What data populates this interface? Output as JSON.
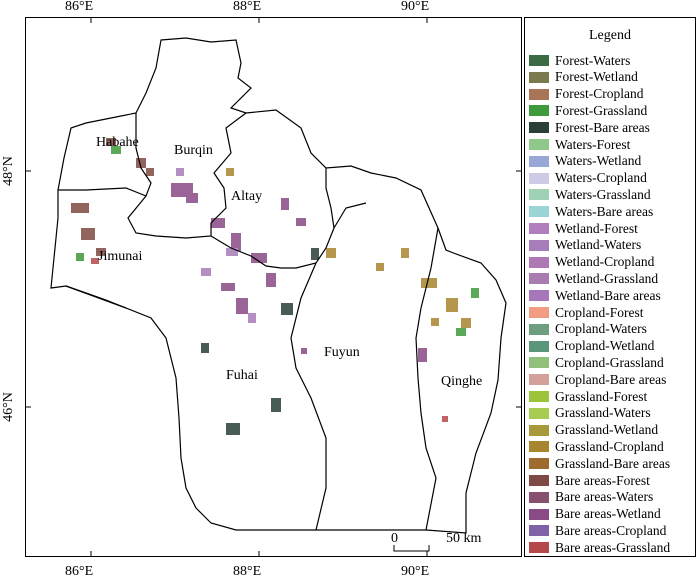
{
  "map": {
    "lon_ticks": [
      "86°E",
      "88°E",
      "90°E"
    ],
    "lat_ticks": [
      "48°N",
      "46°N"
    ],
    "regions": [
      "Habahe",
      "Burqin",
      "Altay",
      "Jimunai",
      "Fuhai",
      "Fuyun",
      "Qinghe"
    ],
    "scale_bar": {
      "start": "0",
      "end": "50 km"
    }
  },
  "legend": {
    "title": "Legend",
    "items": [
      {
        "label": "Forest-Waters",
        "color": "#3a6b45"
      },
      {
        "label": "Forest-Wetland",
        "color": "#7b7a4e"
      },
      {
        "label": "Forest-Cropland",
        "color": "#a87656"
      },
      {
        "label": "Forest-Grassland",
        "color": "#3f9a3c"
      },
      {
        "label": "Forest-Bare areas",
        "color": "#2a3f38"
      },
      {
        "label": "Waters-Forest",
        "color": "#8fc98a"
      },
      {
        "label": "Waters-Wetland",
        "color": "#97a8d6"
      },
      {
        "label": "Waters-Cropland",
        "color": "#cdcbe6"
      },
      {
        "label": "Waters-Grassland",
        "color": "#9fd1b4"
      },
      {
        "label": "Waters-Bare areas",
        "color": "#9bd5d8"
      },
      {
        "label": "Wetland-Forest",
        "color": "#b17fbd"
      },
      {
        "label": "Wetland-Waters",
        "color": "#a77cba"
      },
      {
        "label": "Wetland-Cropland",
        "color": "#ad78b4"
      },
      {
        "label": "Wetland-Grassland",
        "color": "#a97bb0"
      },
      {
        "label": "Wetland-Bare areas",
        "color": "#a677b8"
      },
      {
        "label": "Cropland-Forest",
        "color": "#f29c82"
      },
      {
        "label": "Cropland-Waters",
        "color": "#6e9e80"
      },
      {
        "label": "Cropland-Wetland",
        "color": "#5a9678"
      },
      {
        "label": "Cropland-Grassland",
        "color": "#91c07a"
      },
      {
        "label": "Cropland-Bare areas",
        "color": "#d4a09c"
      },
      {
        "label": "Grassland-Forest",
        "color": "#9bc43b"
      },
      {
        "label": "Grassland-Waters",
        "color": "#a6cd52"
      },
      {
        "label": "Grassland-Wetland",
        "color": "#a89a3a"
      },
      {
        "label": "Grassland-Cropland",
        "color": "#a8852f"
      },
      {
        "label": "Grassland-Bare areas",
        "color": "#9e6a2d"
      },
      {
        "label": "Bare areas-Forest",
        "color": "#7e4a43"
      },
      {
        "label": "Bare areas-Waters",
        "color": "#87506f"
      },
      {
        "label": "Bare areas-Wetland",
        "color": "#8a4a86"
      },
      {
        "label": "Bare areas-Cropland",
        "color": "#7f63a6"
      },
      {
        "label": "Bare areas-Grassland",
        "color": "#b5484a"
      }
    ]
  }
}
